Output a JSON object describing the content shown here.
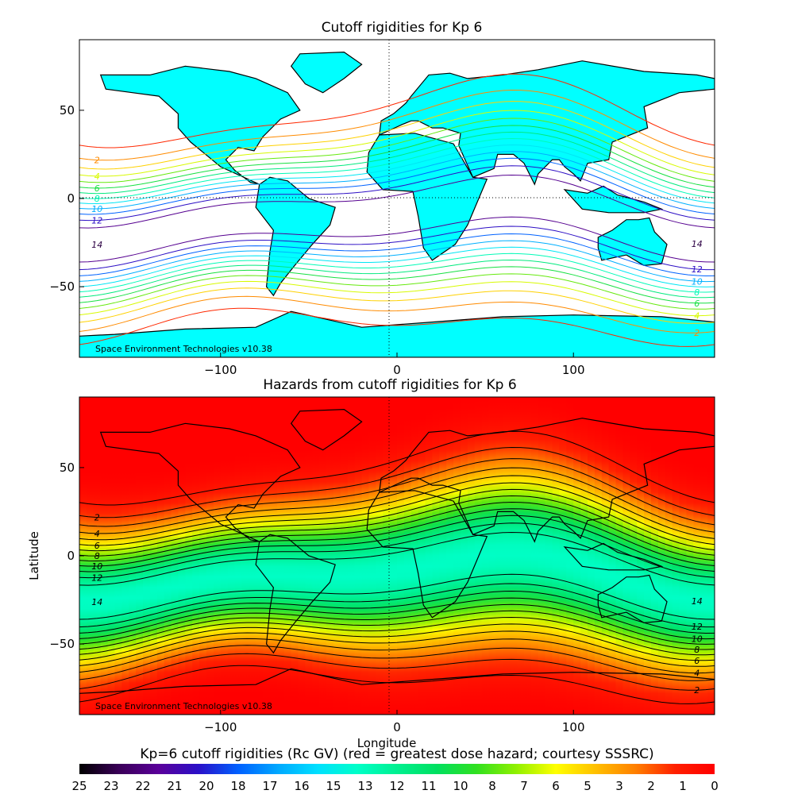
{
  "chart_data": [
    {
      "type": "contour",
      "title": "Cutoff rigidities for Kp 6",
      "xlabel": "",
      "ylabel": "",
      "xlim": [
        -180,
        180
      ],
      "ylim": [
        -90,
        90
      ],
      "x_ticks": [
        -100,
        0,
        100
      ],
      "y_ticks": [
        50,
        0,
        -50
      ],
      "contour_labels": [
        "2",
        "4",
        "6",
        "8",
        "10",
        "12",
        "14"
      ],
      "land_color": "#00ffff",
      "watermark": "Space Environment Technologies v10.38"
    },
    {
      "type": "heatmap",
      "title": "Hazards from cutoff rigidities for Kp 6",
      "xlabel": "Longitude",
      "ylabel": "Latitude",
      "xlim": [
        -180,
        180
      ],
      "ylim": [
        -90,
        90
      ],
      "x_ticks": [
        -100,
        0,
        100
      ],
      "y_ticks": [
        50,
        0,
        -50
      ],
      "contour_labels": [
        "2",
        "4",
        "6",
        "8",
        "10",
        "12",
        "14"
      ],
      "watermark": "Space Environment Technologies v10.38"
    }
  ],
  "colorbar": {
    "title": "Kp=6 cutoff rigidities (Rc GV) (red = greatest dose hazard; courtesy SSSRC)",
    "labels": [
      "25",
      "23",
      "22",
      "21",
      "20",
      "18",
      "17",
      "16",
      "15",
      "13",
      "12",
      "11",
      "10",
      "8",
      "7",
      "6",
      "5",
      "3",
      "2",
      "1",
      "0"
    ],
    "colors": [
      "#000000",
      "#3a0058",
      "#5a009a",
      "#2a10c8",
      "#0060ff",
      "#00a8ff",
      "#00e0ff",
      "#00ffc8",
      "#00f090",
      "#00e060",
      "#30e020",
      "#90f000",
      "#ffff00",
      "#ffc000",
      "#ff8000",
      "#ff2000",
      "#ff0000"
    ]
  }
}
